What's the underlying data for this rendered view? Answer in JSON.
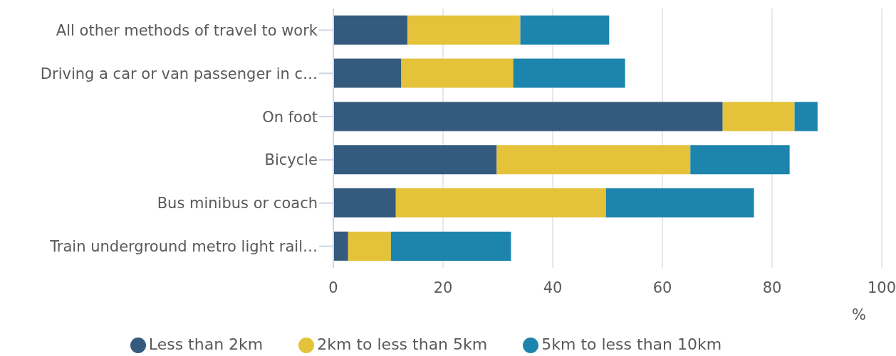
{
  "chart_data": {
    "type": "bar",
    "orientation": "horizontal",
    "stacked": true,
    "xlabel": "%",
    "categories": [
      "All other methods of travel to work",
      "Driving a car or van passenger in c…",
      "On foot",
      "Bicycle",
      "Bus minibus or coach",
      "Train underground metro light rail…"
    ],
    "series": [
      {
        "name": "Less than 2km",
        "color": "#345a7e",
        "values": [
          13.5,
          12.4,
          71.0,
          29.8,
          11.4,
          2.7
        ]
      },
      {
        "name": "2km to less than 5km",
        "color": "#e4c23a",
        "values": [
          20.6,
          20.4,
          13.1,
          35.3,
          38.3,
          7.8
        ]
      },
      {
        "name": "5km to less than 10km",
        "color": "#1c84ad",
        "values": [
          16.2,
          20.4,
          4.2,
          18.1,
          27.0,
          21.9
        ]
      }
    ],
    "xlim": [
      0,
      100
    ],
    "xticks": [
      0,
      20,
      40,
      60,
      80,
      100
    ],
    "grid": "x",
    "legend": "bottom"
  }
}
